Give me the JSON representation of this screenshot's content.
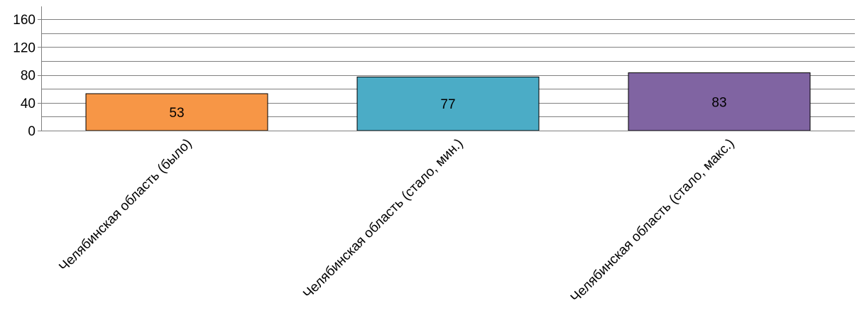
{
  "chart_data": {
    "type": "bar",
    "title": "",
    "xlabel": "",
    "ylabel": "",
    "categories": [
      "Челябинская область (было)",
      "Челябинская область (стало, мин.)",
      "Челябинская область (стало, макс.)"
    ],
    "values": [
      53,
      77,
      83
    ],
    "value_labels": [
      "53",
      "77",
      "83"
    ],
    "ylim": [
      0,
      160
    ],
    "yticks": [
      0,
      40,
      80,
      120,
      160
    ],
    "ytick_labels": [
      "0",
      "40",
      "80",
      "120",
      "160"
    ],
    "minor_gridlines": true,
    "grid": true,
    "legend": "none",
    "colors": [
      "#F79646",
      "#4BACC6",
      "#8064A2"
    ],
    "gridline_color": "#808080",
    "bar_border_color": "#000000"
  }
}
